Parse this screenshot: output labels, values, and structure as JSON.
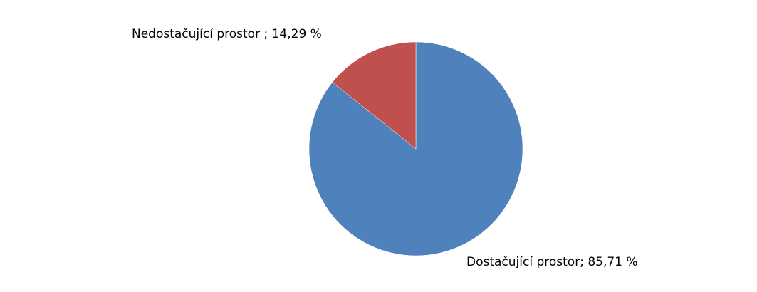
{
  "chart_data": {
    "type": "pie",
    "values": [
      85.71,
      14.29
    ],
    "value_labels": [
      "Dostačující prostor; 85,71 %",
      "Nedostačující prostor ; 14,29 %"
    ],
    "colors": [
      "#4f81bd",
      "#c0504d"
    ]
  }
}
